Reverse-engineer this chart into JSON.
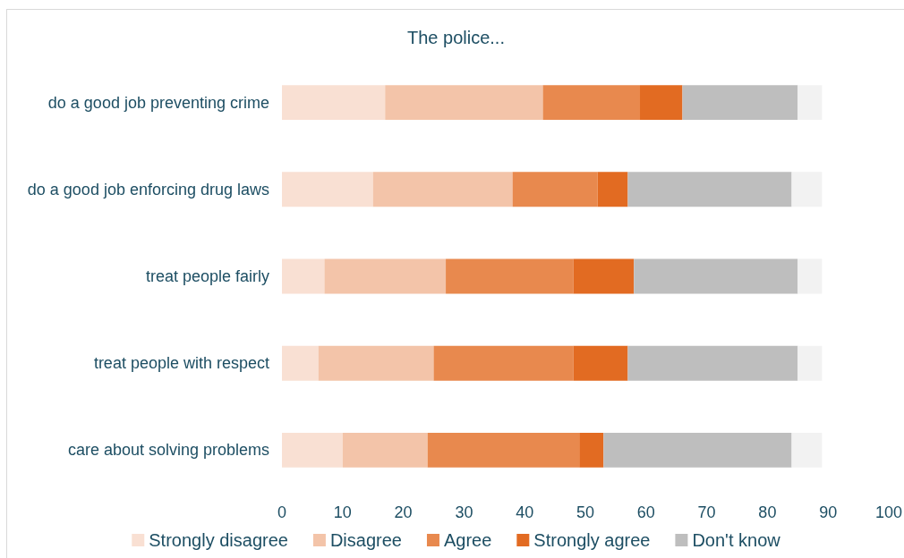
{
  "chart_data": {
    "type": "bar",
    "title": "The police...",
    "orientation": "horizontal",
    "stacked": true,
    "categories": [
      "do a good job preventing crime",
      "do a good job enforcing drug laws",
      "treat people fairly",
      "treat people with respect",
      "care about solving problems"
    ],
    "series": [
      {
        "name": "Strongly disagree",
        "color": "#f9e0d3",
        "values": [
          17,
          15,
          7,
          6,
          10
        ]
      },
      {
        "name": "Disagree",
        "color": "#f3c4a9",
        "values": [
          26,
          23,
          20,
          19,
          14
        ]
      },
      {
        "name": "Agree",
        "color": "#e8894e",
        "values": [
          16,
          14,
          21,
          23,
          25
        ]
      },
      {
        "name": "Strongly agree",
        "color": "#e26b22",
        "values": [
          7,
          5,
          10,
          9,
          4
        ]
      },
      {
        "name": "Don't know",
        "color": "#bebebe",
        "values": [
          19,
          27,
          27,
          28,
          31
        ]
      },
      {
        "color": "#f2f2f2",
        "values": [
          4,
          5,
          4,
          4,
          5
        ]
      }
    ],
    "xlim": [
      0,
      100
    ],
    "xticks": [
      0,
      10,
      20,
      30,
      40,
      50,
      60,
      70,
      80,
      90,
      100
    ],
    "legend": "bottom"
  }
}
